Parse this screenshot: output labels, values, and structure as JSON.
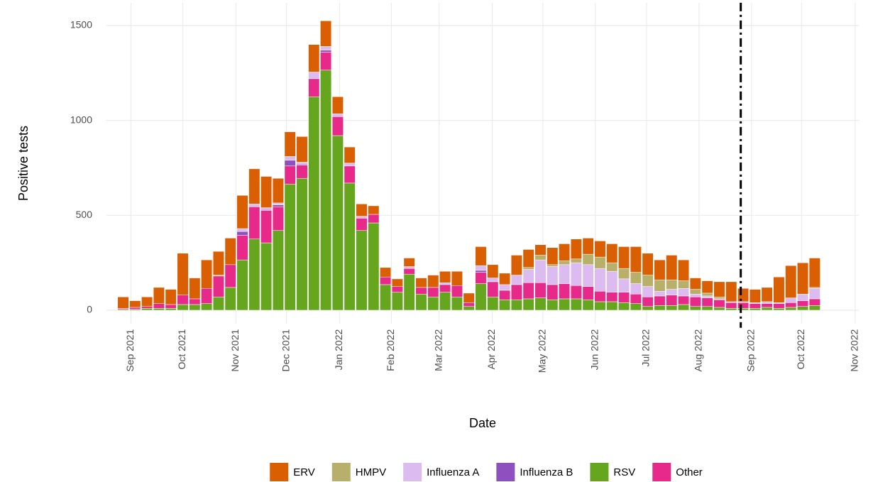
{
  "chart_data": {
    "type": "stacked_bar",
    "x_label": "Date",
    "y_label": "Positive tests",
    "categories": [
      null,
      null,
      null,
      null,
      null,
      null,
      null,
      null,
      null,
      null,
      null,
      null,
      null,
      null,
      null,
      null,
      null,
      null,
      null,
      null,
      null,
      null,
      null,
      null,
      null,
      null,
      null,
      null,
      null,
      null,
      null,
      null,
      null,
      null,
      null,
      null,
      null,
      null,
      null,
      null,
      null,
      null,
      null,
      null,
      null,
      null,
      null,
      null,
      null,
      null,
      null,
      null,
      null,
      null,
      null,
      null,
      null,
      null,
      null
    ],
    "xlim": [
      -1.4,
      61.7
    ],
    "xticks": [
      {
        "value": 0.65,
        "label": "Sep 2021"
      },
      {
        "value": 5.0,
        "label": "Oct 2021"
      },
      {
        "value": 9.46,
        "label": "Nov 2021"
      },
      {
        "value": 13.7,
        "label": "Dec 2021"
      },
      {
        "value": 18.15,
        "label": "Jan 2022"
      },
      {
        "value": 22.5,
        "label": "Feb 2022"
      },
      {
        "value": 26.5,
        "label": "Mar 2022"
      },
      {
        "value": 30.95,
        "label": "Apr 2022"
      },
      {
        "value": 35.2,
        "label": "May 2022"
      },
      {
        "value": 39.6,
        "label": "Jun 2022"
      },
      {
        "value": 43.9,
        "label": "Jul 2022"
      },
      {
        "value": 48.3,
        "label": "Aug 2022"
      },
      {
        "value": 52.7,
        "label": "Sep 2022"
      },
      {
        "value": 56.9,
        "label": "Oct 2022"
      },
      {
        "value": 61.4,
        "label": "Nov 2022"
      }
    ],
    "ylim": [
      -70,
      1620
    ],
    "yticks": [
      0,
      500,
      1000,
      1500
    ],
    "grid": true,
    "vline": 51.8,
    "stack_order": [
      "RSV",
      "Other",
      "Influenza B",
      "Influenza A",
      "HMPV",
      "ERV"
    ],
    "series": [
      {
        "name": "ERV",
        "color": "#d95f02",
        "values": [
          60,
          35,
          50,
          85,
          80,
          220,
          110,
          150,
          125,
          140,
          175,
          185,
          165,
          130,
          130,
          135,
          145,
          135,
          90,
          85,
          65,
          45,
          50,
          40,
          45,
          50,
          65,
          60,
          75,
          50,
          100,
          70,
          60,
          105,
          95,
          55,
          90,
          90,
          105,
          85,
          85,
          100,
          115,
          135,
          115,
          105,
          130,
          110,
          60,
          65,
          80,
          105,
          70,
          70,
          75,
          135,
          170,
          165,
          155
        ]
      },
      {
        "name": "HMPV",
        "color": "#b8b06a",
        "values": [
          0,
          0,
          0,
          0,
          0,
          0,
          0,
          0,
          5,
          0,
          0,
          0,
          0,
          0,
          0,
          0,
          0,
          0,
          0,
          0,
          0,
          0,
          0,
          0,
          0,
          0,
          0,
          0,
          0,
          0,
          0,
          0,
          0,
          0,
          10,
          25,
          10,
          20,
          20,
          55,
          60,
          45,
          55,
          60,
          60,
          60,
          50,
          40,
          25,
          15,
          10,
          0,
          0,
          0,
          0,
          0,
          0,
          0,
          5
        ]
      },
      {
        "name": "Influenza A",
        "color": "#dcbcf0",
        "values": [
          0,
          0,
          0,
          0,
          0,
          0,
          0,
          0,
          0,
          0,
          15,
          15,
          10,
          10,
          20,
          10,
          35,
          20,
          15,
          15,
          10,
          0,
          0,
          0,
          10,
          0,
          0,
          10,
          0,
          0,
          25,
          20,
          30,
          50,
          70,
          120,
          95,
          100,
          120,
          115,
          120,
          110,
          70,
          55,
          55,
          25,
          30,
          40,
          15,
          10,
          5,
          5,
          5,
          5,
          10,
          5,
          25,
          35,
          55
        ]
      },
      {
        "name": "Influenza B",
        "color": "#8e4fbf",
        "values": [
          0,
          0,
          0,
          0,
          0,
          0,
          0,
          0,
          0,
          0,
          20,
          0,
          5,
          10,
          30,
          5,
          0,
          10,
          0,
          0,
          0,
          0,
          0,
          0,
          0,
          0,
          0,
          0,
          0,
          0,
          10,
          0,
          0,
          0,
          0,
          0,
          0,
          0,
          0,
          0,
          0,
          0,
          0,
          0,
          0,
          0,
          0,
          0,
          0,
          0,
          0,
          0,
          0,
          0,
          0,
          0,
          0,
          0,
          0
        ]
      },
      {
        "name": "RSV",
        "color": "#66a61e",
        "values": [
          5,
          5,
          10,
          10,
          10,
          30,
          30,
          35,
          70,
          120,
          265,
          375,
          355,
          420,
          665,
          695,
          1125,
          1265,
          920,
          670,
          420,
          460,
          135,
          95,
          190,
          85,
          70,
          95,
          70,
          20,
          140,
          70,
          55,
          55,
          60,
          65,
          55,
          60,
          60,
          55,
          45,
          45,
          40,
          35,
          20,
          25,
          25,
          30,
          20,
          20,
          15,
          10,
          10,
          10,
          15,
          10,
          15,
          20,
          25
        ]
      },
      {
        "name": "Other",
        "color": "#e7298a",
        "values": [
          5,
          10,
          10,
          25,
          20,
          50,
          30,
          80,
          110,
          120,
          130,
          170,
          170,
          125,
          95,
          70,
          95,
          95,
          100,
          90,
          65,
          45,
          40,
          30,
          30,
          35,
          50,
          40,
          60,
          20,
          60,
          80,
          50,
          80,
          85,
          80,
          80,
          80,
          70,
          70,
          55,
          50,
          55,
          50,
          50,
          50,
          55,
          45,
          50,
          45,
          40,
          30,
          30,
          25,
          20,
          25,
          25,
          30,
          35
        ]
      }
    ]
  }
}
